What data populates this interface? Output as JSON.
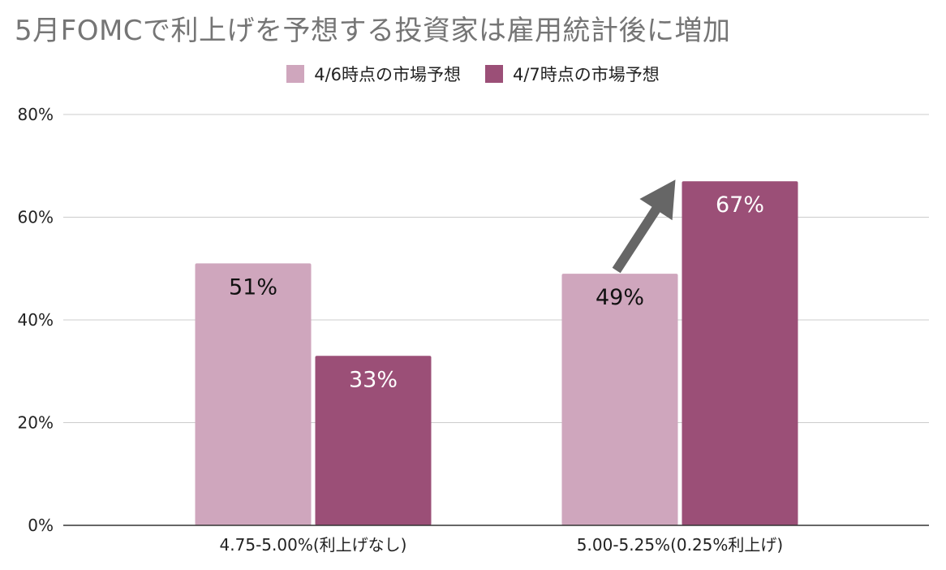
{
  "chart_data": {
    "type": "bar",
    "title": "5月FOMCで利上げを予想する投資家は雇用統計後に増加",
    "categories": [
      "4.75-5.00%(利上げなし)",
      "5.00-5.25%(0.25%利上げ)"
    ],
    "series": [
      {
        "name": "4/6時点の市場予想",
        "values": [
          51,
          49
        ],
        "labels": [
          "51%",
          "49%"
        ],
        "color": "#cfa6bd",
        "label_color": "#111111"
      },
      {
        "name": "4/7時点の市場予想",
        "values": [
          33,
          67
        ],
        "labels": [
          "33%",
          "67%"
        ],
        "color": "#9b4f77",
        "label_color": "#ffffff"
      }
    ],
    "ylim": [
      0,
      80
    ],
    "yticks": [
      0,
      20,
      40,
      60,
      80
    ],
    "ytick_labels": [
      "0%",
      "20%",
      "40%",
      "60%",
      "80%"
    ],
    "grid": true,
    "legend_position": "top-center",
    "annotation": {
      "type": "arrow",
      "from": "series-0-category-1",
      "to": "series-1-category-1",
      "color": "#666666"
    }
  }
}
